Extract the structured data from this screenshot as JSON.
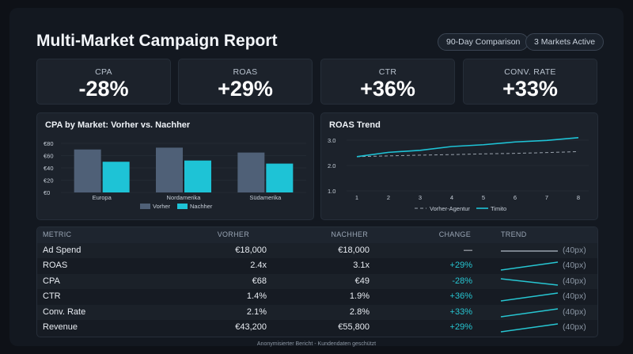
{
  "header": {
    "title": "Multi-Market Campaign Report",
    "pills": [
      "90-Day Comparison",
      "3 Markets Active"
    ]
  },
  "kpis": [
    {
      "label": "CPA",
      "value": "-28%"
    },
    {
      "label": "ROAS",
      "value": "+29%"
    },
    {
      "label": "CTR",
      "value": "+36%"
    },
    {
      "label": "CONV. RATE",
      "value": "+33%"
    }
  ],
  "colors": {
    "vorher": "#4f6077",
    "nachher": "#1ec3d6",
    "accent": "#27c6d2",
    "dashed": "#9aa3ad"
  },
  "chart_data": [
    {
      "type": "bar",
      "title": "CPA by Market: Vorher vs. Nachher",
      "categories": [
        "Europa",
        "Nordamerika",
        "Südamerika"
      ],
      "series": [
        {
          "name": "Vorher",
          "values": [
            70,
            73,
            65
          ]
        },
        {
          "name": "Nachher",
          "values": [
            50,
            52,
            47
          ]
        }
      ],
      "y_ticks": [
        "€80",
        "€60",
        "€40",
        "€20",
        "€0"
      ],
      "ylim": [
        0,
        80
      ],
      "legend": "bottom"
    },
    {
      "type": "line",
      "title": "ROAS Trend",
      "x": [
        1,
        2,
        3,
        4,
        5,
        6,
        7,
        8
      ],
      "series": [
        {
          "name": "Vorher-Agentur",
          "values": [
            2.35,
            2.38,
            2.41,
            2.43,
            2.46,
            2.48,
            2.51,
            2.55
          ],
          "style": "dashed"
        },
        {
          "name": "Timito",
          "values": [
            2.35,
            2.52,
            2.6,
            2.75,
            2.82,
            2.93,
            2.99,
            3.1
          ],
          "style": "solid"
        }
      ],
      "y_ticks": [
        "3.0",
        "2.0",
        "1.0"
      ],
      "ylim": [
        1.0,
        3.0
      ],
      "legend": "bottom"
    }
  ],
  "table": {
    "headers": [
      "METRIC",
      "VORHER",
      "NACHHER",
      "CHANGE",
      "TREND"
    ],
    "rows": [
      {
        "metric": "Ad Spend",
        "vorher": "€18,000",
        "nachher": "€18,000",
        "change": "—",
        "trend": "flat",
        "size": "(40px)"
      },
      {
        "metric": "ROAS",
        "vorher": "2.4x",
        "nachher": "3.1x",
        "change": "+29%",
        "trend": "up",
        "size": "(40px)"
      },
      {
        "metric": "CPA",
        "vorher": "€68",
        "nachher": "€49",
        "change": "-28%",
        "trend": "down",
        "size": "(40px)"
      },
      {
        "metric": "CTR",
        "vorher": "1.4%",
        "nachher": "1.9%",
        "change": "+36%",
        "trend": "up",
        "size": "(40px)"
      },
      {
        "metric": "Conv. Rate",
        "vorher": "2.1%",
        "nachher": "2.8%",
        "change": "+33%",
        "trend": "up",
        "size": "(40px)"
      },
      {
        "metric": "Revenue",
        "vorher": "€43,200",
        "nachher": "€55,800",
        "change": "+29%",
        "trend": "up",
        "size": "(40px)"
      }
    ]
  },
  "footer": "Anonymisierter Bericht - Kundendaten geschützt"
}
